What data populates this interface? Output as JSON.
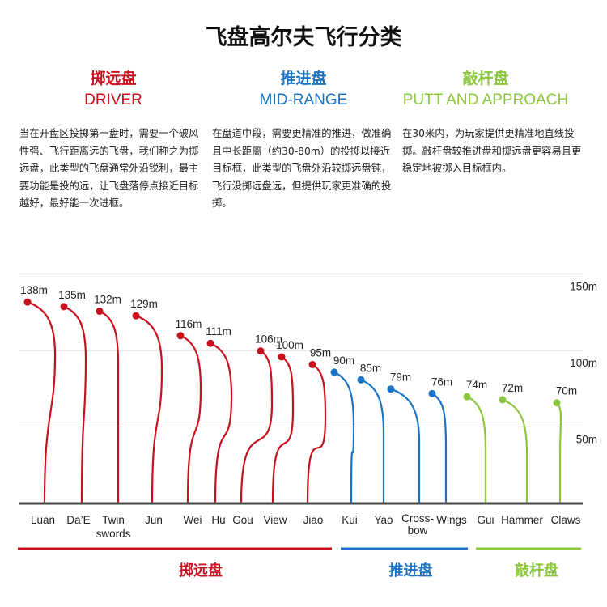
{
  "title": "飞盘高尔夫飞行分类",
  "categories": [
    {
      "zh": "掷远盘",
      "en": "DRIVER",
      "color": "#c8101e",
      "desc": "当在开盘区投掷第一盘时，需要一个破风性强、飞行距离远的飞盘，我们称之为掷远盘，此类型的飞盘通常外沿锐利，最主要功能是投的远，让飞盘落停点接近目标越好，最好能一次进框。"
    },
    {
      "zh": "推进盘",
      "en": "MID-RANGE",
      "color": "#1a73c4",
      "desc": "在盘道中段，需要更精准的推进，做准确且中长距离（约30-80m）的投掷以接近目标框，此类型的飞盘外沿较掷远盘钝，飞行没掷远盘远，但提供玩家更准确的投掷。"
    },
    {
      "zh": "敲杆盘",
      "en": "PUTT AND APPROACH",
      "color": "#8cc63e",
      "desc": "在30米内，为玩家提供更精准地直线投掷。敲杆盘较推进盘和掷远盘更容易且更稳定地被掷入目标框内。"
    }
  ],
  "chart_data": {
    "type": "line",
    "title": "飞盘高尔夫飞行分类",
    "ylim": [
      0,
      150
    ],
    "yticks": [
      "50m",
      "100m",
      "150m"
    ],
    "ytick_values": [
      50,
      100,
      150
    ],
    "grid": true,
    "items": [
      {
        "name": "Luan",
        "distance": 138,
        "label": "138m",
        "group": 0
      },
      {
        "name": "Da’E",
        "distance": 135,
        "label": "135m",
        "group": 0
      },
      {
        "name": "Twin swords",
        "distance": 132,
        "label": "132m",
        "group": 0
      },
      {
        "name": "Jun",
        "distance": 129,
        "label": "129m",
        "group": 0
      },
      {
        "name": "Wei",
        "distance": 116,
        "label": "116m",
        "group": 0
      },
      {
        "name": "Hu Gou",
        "distance": 111,
        "label": "111m",
        "group": 0
      },
      {
        "name": "View",
        "distance": 106,
        "label": "106m",
        "group": 0
      },
      {
        "name": "Jiao",
        "distance": 100,
        "label": "100m",
        "group": 0
      },
      {
        "name": "Kui",
        "distance": 95,
        "label": "95m",
        "group": 0
      },
      {
        "name": "Yao",
        "distance": 90,
        "label": "90m",
        "group": 1
      },
      {
        "name": "Cross-bow",
        "distance": 85,
        "label": "85m",
        "group": 1
      },
      {
        "name": "Wings",
        "distance": 79,
        "label": "79m",
        "group": 1
      },
      {
        "name": "Gui",
        "distance": 76,
        "label": "76m",
        "group": 1
      },
      {
        "name": "Hammer",
        "distance": 74,
        "label": "74m",
        "group": 2
      },
      {
        "name": "Claws",
        "distance": 72,
        "label": "72m",
        "group": 2
      },
      {
        "name": "",
        "distance": 70,
        "label": "70m",
        "group": 2
      }
    ],
    "xlabels": [
      "Luan",
      "Da’E",
      "Twin",
      "swords",
      "Jun",
      "Wei",
      "Hu",
      "Gou",
      "View",
      "Jiao",
      "Kui",
      "Yao",
      "Cross-",
      "bow",
      "Wings",
      "Gui",
      "Hammer",
      "Claws"
    ]
  }
}
